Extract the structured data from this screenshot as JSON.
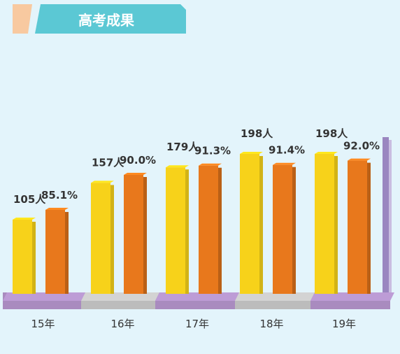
{
  "header": {
    "title": "高考成果"
  },
  "colors": {
    "background": "#e3f4fb",
    "title_banner": "#5bc8d4",
    "title_accent": "#f8c9a0",
    "people_bar": "#f7d21a",
    "rate_bar": "#e8781c",
    "floor_purple": "#a98bbf",
    "floor_gray": "#bcbcbc",
    "axis_post": "#9a86c0"
  },
  "chart_data": {
    "type": "bar",
    "categories": [
      "15年",
      "16年",
      "17年",
      "18年",
      "19年"
    ],
    "series": [
      {
        "values": [
          105,
          157,
          179,
          198,
          198
        ],
        "labels": [
          "105人",
          "157人",
          "179人",
          "198人",
          "198人"
        ]
      },
      {
        "values": [
          85.1,
          90.0,
          91.3,
          91.4,
          92.0
        ],
        "labels": [
          "85.1%",
          "90.0%",
          "91.3%",
          "91.4%",
          "92.0%"
        ]
      }
    ]
  }
}
